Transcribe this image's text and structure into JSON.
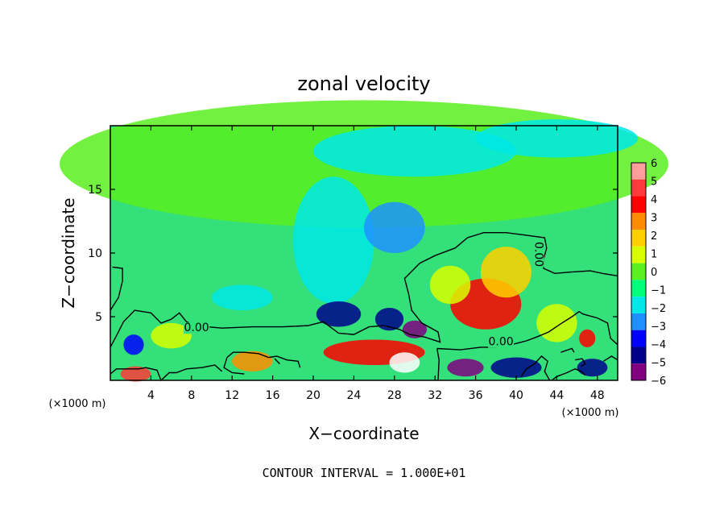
{
  "chart_data": {
    "type": "heatmap",
    "title": "zonal velocity",
    "xlabel": "X−coordinate",
    "ylabel": "Z−coordinate",
    "x_unit": "(×1000 m)",
    "y_unit": "(×1000 m)",
    "xlim": [
      0,
      50
    ],
    "ylim": [
      0,
      20
    ],
    "x_ticks": [
      4,
      8,
      12,
      16,
      20,
      24,
      28,
      32,
      36,
      40,
      44,
      48
    ],
    "y_ticks": [
      5,
      10,
      15
    ],
    "colorbar": {
      "levels": [
        6,
        5,
        4,
        3,
        2,
        1,
        0,
        -1,
        -2,
        -3,
        -4,
        -5,
        -6
      ],
      "labels": [
        "6",
        "5",
        "4",
        "3",
        "2",
        "1",
        "0",
        "−1",
        "−2",
        "−3",
        "−4",
        "−5",
        "−6"
      ],
      "colors": [
        "#ff9c9c",
        "#ff3a3a",
        "#ff0000",
        "#ff8c00",
        "#ffd000",
        "#d8ff00",
        "#5aef20",
        "#00ff7a",
        "#00e8e8",
        "#1e90ff",
        "#0000ff",
        "#00008b",
        "#800080"
      ]
    },
    "zero_contour_label": "0.00",
    "contour_interval_text": "CONTOUR INTERVAL = 1.000E+01",
    "fields": [
      {
        "x": 25,
        "y": 17,
        "v": 0.5,
        "sx": 30,
        "sy": 5
      },
      {
        "x": 22,
        "y": 11,
        "v": -1.8,
        "sx": 4,
        "sy": 5
      },
      {
        "x": 28,
        "y": 12,
        "v": -2.2,
        "sx": 3,
        "sy": 2
      },
      {
        "x": 30,
        "y": 18,
        "v": -1.8,
        "sx": 10,
        "sy": 2
      },
      {
        "x": 44,
        "y": 19,
        "v": -1.5,
        "sx": 8,
        "sy": 1.5
      },
      {
        "x": 13,
        "y": 6.5,
        "v": -1.5,
        "sx": 3,
        "sy": 1
      },
      {
        "x": 22.5,
        "y": 5.2,
        "v": -4.2,
        "sx": 2.2,
        "sy": 1
      },
      {
        "x": 27.5,
        "y": 4.8,
        "v": -5,
        "sx": 1.4,
        "sy": 0.9
      },
      {
        "x": 30,
        "y": 4,
        "v": -5.5,
        "sx": 1.2,
        "sy": 0.7
      },
      {
        "x": 2.3,
        "y": 2.8,
        "v": -3.5,
        "sx": 1,
        "sy": 0.8
      },
      {
        "x": 37,
        "y": 6,
        "v": 4.2,
        "sx": 3.5,
        "sy": 2
      },
      {
        "x": 39,
        "y": 8.5,
        "v": 2.2,
        "sx": 2.5,
        "sy": 2
      },
      {
        "x": 33.5,
        "y": 7.5,
        "v": 1.8,
        "sx": 2,
        "sy": 1.5
      },
      {
        "x": 26,
        "y": 2.2,
        "v": 4.5,
        "sx": 5,
        "sy": 1
      },
      {
        "x": 29,
        "y": 1.4,
        "v": 6.5,
        "sx": 1.5,
        "sy": 0.8
      },
      {
        "x": 14,
        "y": 1.5,
        "v": 3,
        "sx": 2,
        "sy": 0.8
      },
      {
        "x": 2.5,
        "y": 0.5,
        "v": 5,
        "sx": 1.5,
        "sy": 0.6
      },
      {
        "x": 35,
        "y": 1,
        "v": -5.5,
        "sx": 1.8,
        "sy": 0.7
      },
      {
        "x": 40,
        "y": 1,
        "v": -4.5,
        "sx": 2.5,
        "sy": 0.8
      },
      {
        "x": 47,
        "y": 3.3,
        "v": 4,
        "sx": 0.8,
        "sy": 0.7
      },
      {
        "x": 47.5,
        "y": 1,
        "v": -4.5,
        "sx": 1.5,
        "sy": 0.7
      },
      {
        "x": 6,
        "y": 3.5,
        "v": 1.5,
        "sx": 2,
        "sy": 1
      },
      {
        "x": 44,
        "y": 4.5,
        "v": 1.2,
        "sx": 2,
        "sy": 1.5
      }
    ]
  }
}
